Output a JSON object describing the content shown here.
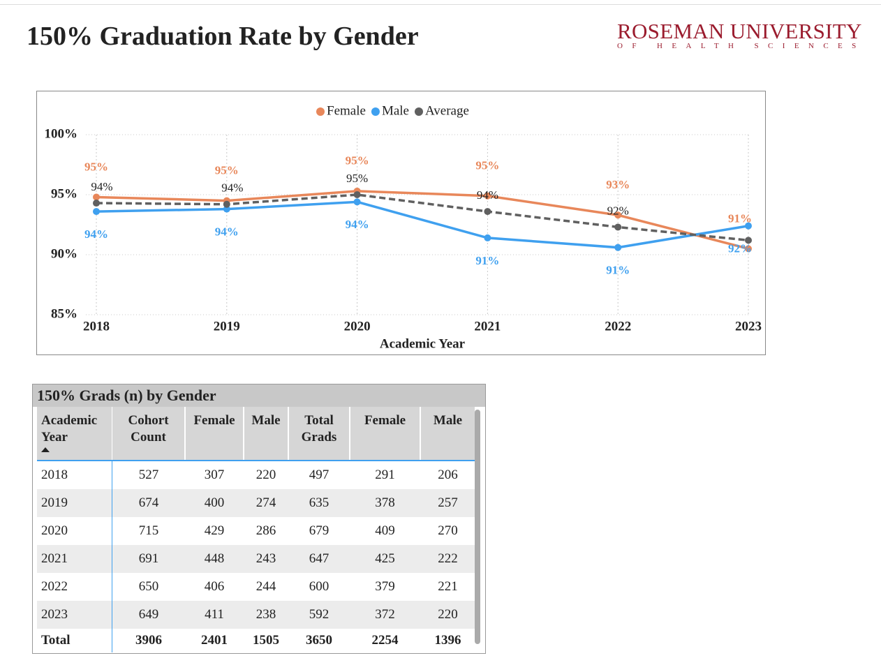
{
  "header": {
    "title": "150% Graduation Rate by Gender",
    "logo": "ROSEMAN UNIVERSITY",
    "logo_sub": "OF HEALTH SCIENCES"
  },
  "chart_data": {
    "type": "line",
    "categories": [
      "2018",
      "2019",
      "2020",
      "2021",
      "2022",
      "2023"
    ],
    "x_label": "Academic Year",
    "ylim": [
      85,
      100
    ],
    "yticks": [
      {
        "value": 85,
        "label": "85%"
      },
      {
        "value": 90,
        "label": "90%"
      },
      {
        "value": 95,
        "label": "95%"
      },
      {
        "value": 100,
        "label": "100%"
      }
    ],
    "grid": true,
    "legend": "top",
    "series": [
      {
        "name": "Female",
        "color": "#e8875a",
        "values": [
          94.8,
          94.5,
          95.3,
          94.9,
          93.3,
          90.5
        ],
        "value_labels": [
          "95%",
          "95%",
          "95%",
          "95%",
          "93%",
          "91%"
        ]
      },
      {
        "name": "Male",
        "color": "#3fa0ef",
        "values": [
          93.6,
          93.8,
          94.4,
          91.4,
          90.6,
          92.4
        ],
        "value_labels": [
          "94%",
          "94%",
          "94%",
          "91%",
          "91%",
          "92%"
        ]
      },
      {
        "name": "Average",
        "color": "#606060",
        "dashed": true,
        "values": [
          94.3,
          94.2,
          95.0,
          93.6,
          92.3,
          91.2
        ],
        "value_labels": [
          "94%",
          "94%",
          "95%",
          "94%",
          "92%",
          null
        ]
      }
    ]
  },
  "table": {
    "title": "150% Grads (n) by Gender",
    "columns": [
      "Academic Year",
      "Cohort Count",
      "Female",
      "Male",
      "Total Grads",
      "Female",
      "Male"
    ],
    "rows": [
      [
        "2018",
        527,
        307,
        220,
        497,
        291,
        206
      ],
      [
        "2019",
        674,
        400,
        274,
        635,
        378,
        257
      ],
      [
        "2020",
        715,
        429,
        286,
        679,
        409,
        270
      ],
      [
        "2021",
        691,
        448,
        243,
        647,
        425,
        222
      ],
      [
        "2022",
        650,
        406,
        244,
        600,
        379,
        221
      ],
      [
        "2023",
        649,
        411,
        238,
        592,
        372,
        220
      ]
    ],
    "total": [
      "Total",
      3906,
      2401,
      1505,
      3650,
      2254,
      1396
    ]
  }
}
